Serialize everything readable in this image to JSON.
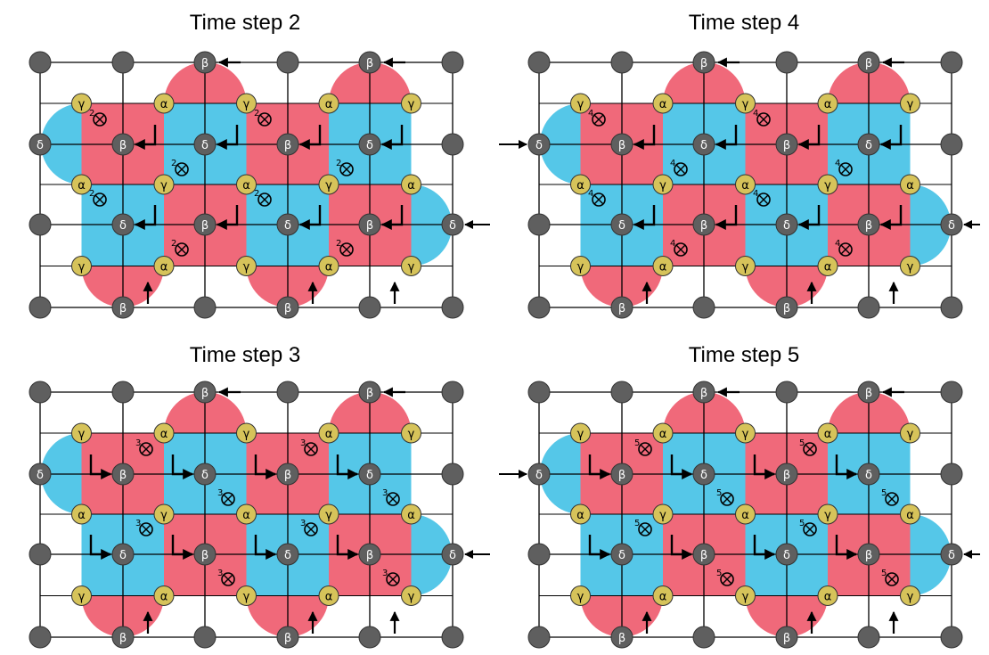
{
  "panels": [
    {
      "title": "Time step 2",
      "step": 2,
      "count_label": "2",
      "side_arrows": "right"
    },
    {
      "title": "Time step 4",
      "step": 4,
      "count_label": "4",
      "side_arrows": "both"
    },
    {
      "title": "Time step 3",
      "step": 3,
      "count_label": "3",
      "side_arrows": "right"
    },
    {
      "title": "Time step 5",
      "step": 5,
      "count_label": "5",
      "side_arrows": "both"
    }
  ],
  "qubit_labels": {
    "alpha": "α",
    "beta": "β",
    "gamma": "γ",
    "delta": "δ"
  },
  "colors": {
    "red_plaquette": "#f0697a",
    "blue_plaquette": "#55c7e8",
    "ancilla_yellow": "#d6c35a",
    "data_gray": "#5f5f5f",
    "line": "#000000"
  }
}
